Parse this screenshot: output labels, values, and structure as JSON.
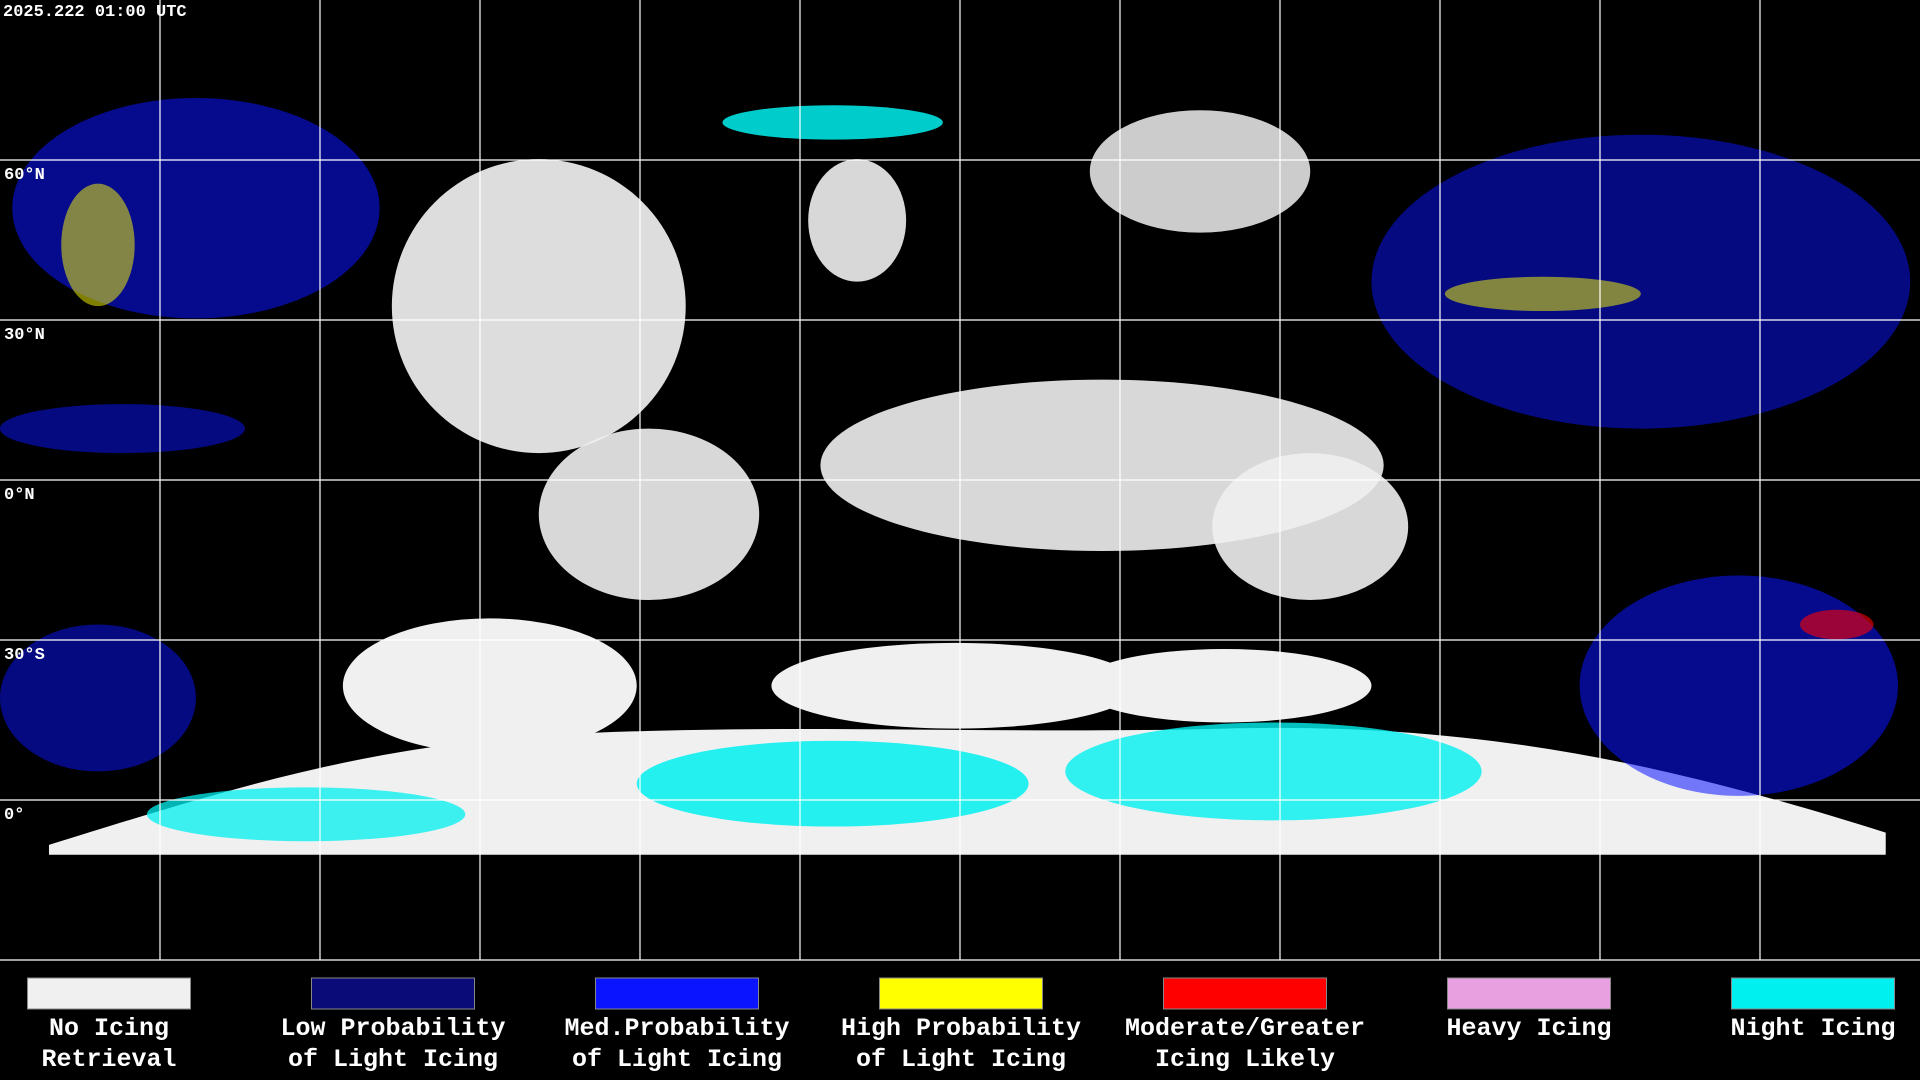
{
  "header": {
    "timestamp": "2025.222 01:00 UTC"
  },
  "map": {
    "latitude_labels": [
      "60°N",
      "30°N",
      "0°N",
      "30°S",
      "0°"
    ]
  },
  "legend": [
    {
      "color": "#f0f0f0",
      "lines": [
        "No Icing",
        "Retrieval"
      ]
    },
    {
      "color": "#0a0a78",
      "lines": [
        "Low Probability",
        "of Light Icing"
      ]
    },
    {
      "color": "#0a14ff",
      "lines": [
        "Med.Probability",
        "of Light Icing"
      ]
    },
    {
      "color": "#ffff00",
      "lines": [
        "High Probability",
        "of Light Icing"
      ]
    },
    {
      "color": "#ff0000",
      "lines": [
        "Moderate/Greater",
        "Icing Likely"
      ]
    },
    {
      "color": "#e8a0e0",
      "lines": [
        "Heavy Icing"
      ]
    },
    {
      "color": "#00f0f0",
      "lines": [
        "Night Icing"
      ]
    }
  ]
}
